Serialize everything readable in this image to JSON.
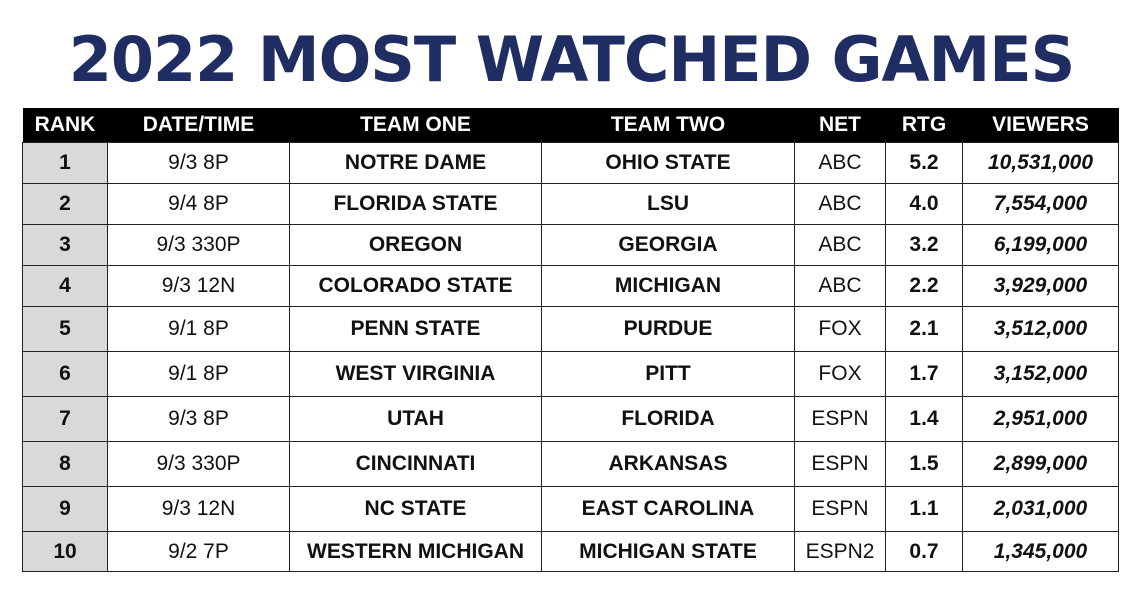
{
  "title": "2022 MOST WATCHED GAMES",
  "colors": {
    "title": "#1f2d63",
    "header_bg": "#000000",
    "rating": "#b8312f",
    "viewers": "#3b6fb6",
    "rank_bg": "#d9d9d9"
  },
  "headers": {
    "rank": "RANK",
    "date": "DATE/TIME",
    "team_one": "TEAM ONE",
    "team_two": "TEAM TWO",
    "net": "NET",
    "rtg": "RTG",
    "viewers": "VIEWERS"
  },
  "rows": [
    {
      "rank": "1",
      "date": "9/3 8P",
      "team_one": "NOTRE DAME",
      "team_two": "OHIO STATE",
      "net": "ABC",
      "rtg": "5.2",
      "viewers": "10,531,000"
    },
    {
      "rank": "2",
      "date": "9/4 8P",
      "team_one": "FLORIDA STATE",
      "team_two": "LSU",
      "net": "ABC",
      "rtg": "4.0",
      "viewers": "7,554,000"
    },
    {
      "rank": "3",
      "date": "9/3 330P",
      "team_one": "OREGON",
      "team_two": "GEORGIA",
      "net": "ABC",
      "rtg": "3.2",
      "viewers": "6,199,000"
    },
    {
      "rank": "4",
      "date": "9/3 12N",
      "team_one": "COLORADO STATE",
      "team_two": "MICHIGAN",
      "net": "ABC",
      "rtg": "2.2",
      "viewers": "3,929,000"
    },
    {
      "rank": "5",
      "date": "9/1 8P",
      "team_one": "PENN STATE",
      "team_two": "PURDUE",
      "net": "FOX",
      "rtg": "2.1",
      "viewers": "3,512,000"
    },
    {
      "rank": "6",
      "date": "9/1 8P",
      "team_one": "WEST VIRGINIA",
      "team_two": "PITT",
      "net": "FOX",
      "rtg": "1.7",
      "viewers": "3,152,000"
    },
    {
      "rank": "7",
      "date": "9/3 8P",
      "team_one": "UTAH",
      "team_two": "FLORIDA",
      "net": "ESPN",
      "rtg": "1.4",
      "viewers": "2,951,000"
    },
    {
      "rank": "8",
      "date": "9/3 330P",
      "team_one": "CINCINNATI",
      "team_two": "ARKANSAS",
      "net": "ESPN",
      "rtg": "1.5",
      "viewers": "2,899,000"
    },
    {
      "rank": "9",
      "date": "9/3 12N",
      "team_one": "NC STATE",
      "team_two": "EAST CAROLINA",
      "net": "ESPN",
      "rtg": "1.1",
      "viewers": "2,031,000"
    },
    {
      "rank": "10",
      "date": "9/2 7P",
      "team_one": "WESTERN MICHIGAN",
      "team_two": "MICHIGAN STATE",
      "net": "ESPN2",
      "rtg": "0.7",
      "viewers": "1,345,000"
    }
  ]
}
